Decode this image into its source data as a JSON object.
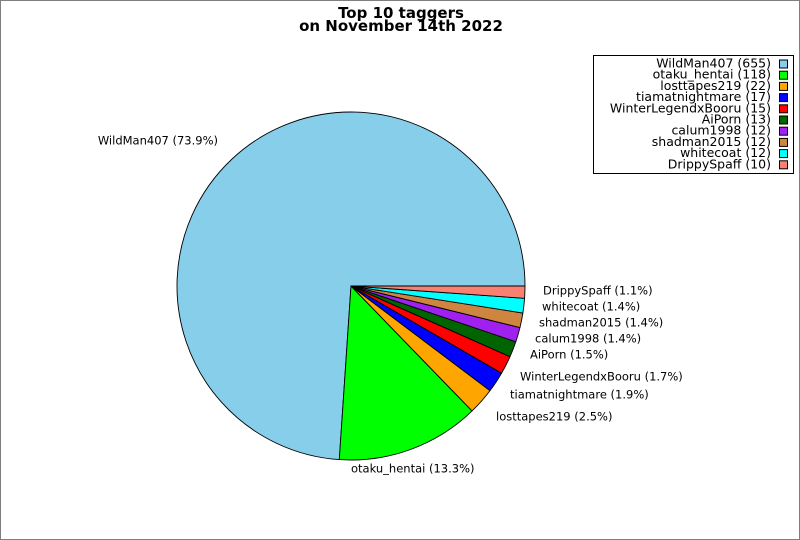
{
  "chart_data": {
    "type": "pie",
    "title": "Top 10 taggers",
    "subtitle": "on November 14th 2022",
    "slices": [
      {
        "name": "WildMan407",
        "value": 655,
        "label": "WildMan407 (73.9%)",
        "legend": "WildMan407 (655)",
        "color": "#87ceeb"
      },
      {
        "name": "otaku_hentai",
        "value": 118,
        "label": "otaku_hentai (13.3%)",
        "legend": "otaku_hentai (118)",
        "color": "#00ff00"
      },
      {
        "name": "losttapes219",
        "value": 22,
        "label": "losttapes219 (2.5%)",
        "legend": "losttapes219 (22)",
        "color": "#ffa500"
      },
      {
        "name": "tiamatnightmare",
        "value": 17,
        "label": "tiamatnightmare (1.9%)",
        "legend": "tiamatnightmare (17)",
        "color": "#0000ff"
      },
      {
        "name": "WinterLegendxBooru",
        "value": 15,
        "label": "WinterLegendxBooru (1.7%)",
        "legend": "WinterLegendxBooru (15)",
        "color": "#ff0000"
      },
      {
        "name": "AiPorn",
        "value": 13,
        "label": "AiPorn (1.5%)",
        "legend": "AiPorn (13)",
        "color": "#006400"
      },
      {
        "name": "calum1998",
        "value": 12,
        "label": "calum1998 (1.4%)",
        "legend": "calum1998 (12)",
        "color": "#a020f0"
      },
      {
        "name": "shadman2015",
        "value": 12,
        "label": "shadman2015 (1.4%)",
        "legend": "shadman2015 (12)",
        "color": "#cd853f"
      },
      {
        "name": "whitecoat",
        "value": 12,
        "label": "whitecoat (1.4%)",
        "legend": "whitecoat (12)",
        "color": "#00ffff"
      },
      {
        "name": "DrippySpaff",
        "value": 10,
        "label": "DrippySpaff (1.1%)",
        "legend": "DrippySpaff (10)",
        "color": "#fa8072"
      }
    ],
    "legend_position": "top-right",
    "start_angle": "0 degrees (3 o'clock), counterclockwise"
  }
}
